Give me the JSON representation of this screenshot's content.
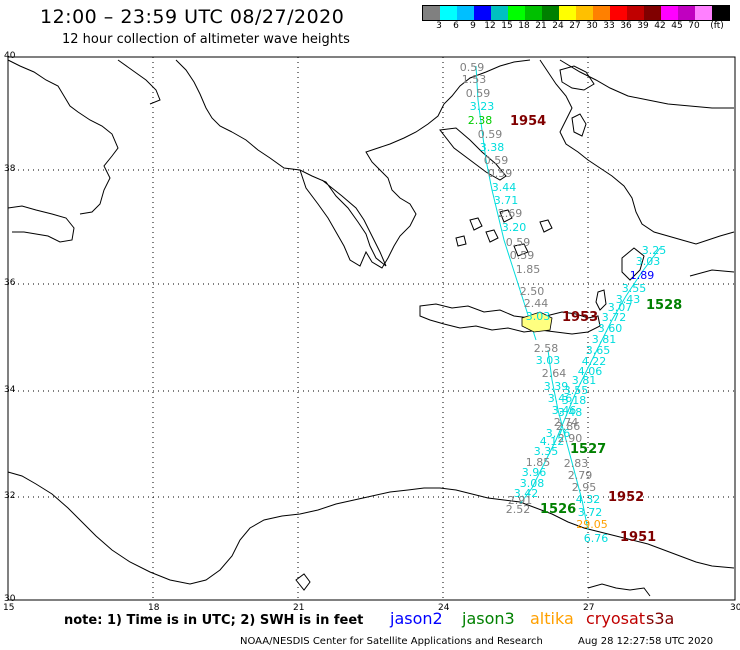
{
  "header": {
    "title": "12:00 – 23:59 UTC 08/27/2020",
    "subtitle": "12 hour collection of altimeter wave heights"
  },
  "scale": {
    "colors": [
      "#808080",
      "#00ffff",
      "#00bfff",
      "#0000ff",
      "#00c0c0",
      "#00ff00",
      "#00c000",
      "#008000",
      "#ffff00",
      "#ffc000",
      "#ff8000",
      "#ff0000",
      "#c00000",
      "#800000",
      "#ff00ff",
      "#c000c0",
      "#ff80ff",
      "#000000"
    ],
    "labels": [
      "3",
      "6",
      "9",
      "12",
      "15",
      "18",
      "21",
      "24",
      "27",
      "30",
      "33",
      "36",
      "39",
      "42",
      "45",
      "70",
      "(ft)"
    ]
  },
  "axes": {
    "lon_labels": [
      "15",
      "18",
      "21",
      "24",
      "27",
      "30"
    ],
    "lat_labels": [
      "40",
      "38",
      "36",
      "34",
      "32",
      "30"
    ]
  },
  "tracks": [
    {
      "name": "1954",
      "color": "#800000"
    },
    {
      "name": "1953",
      "color": "#800000"
    },
    {
      "name": "1528",
      "color": "#008000"
    },
    {
      "name": "1527",
      "color": "#008000"
    },
    {
      "name": "1526",
      "color": "#008000"
    },
    {
      "name": "1952",
      "color": "#800000"
    },
    {
      "name": "1951",
      "color": "#800000"
    }
  ],
  "wave_heights": [
    {
      "v": "0.59",
      "c": "#808080"
    },
    {
      "v": "1.53",
      "c": "#808080"
    },
    {
      "v": "0.59",
      "c": "#808080"
    },
    {
      "v": "3.23",
      "c": "#00dddd"
    },
    {
      "v": "2.38",
      "c": "#00cc00"
    },
    {
      "v": "0.59",
      "c": "#808080"
    },
    {
      "v": "3.38",
      "c": "#00dddd"
    },
    {
      "v": "0.59",
      "c": "#808080"
    },
    {
      "v": "0.59",
      "c": "#808080"
    },
    {
      "v": "3.44",
      "c": "#00dddd"
    },
    {
      "v": "3.71",
      "c": "#00dddd"
    },
    {
      "v": "2.69",
      "c": "#808080"
    },
    {
      "v": "3.20",
      "c": "#00dddd"
    },
    {
      "v": "0.59",
      "c": "#808080"
    },
    {
      "v": "0.59",
      "c": "#808080"
    },
    {
      "v": "1.85",
      "c": "#808080"
    },
    {
      "v": "2.50",
      "c": "#808080"
    },
    {
      "v": "2.44",
      "c": "#808080"
    },
    {
      "v": "3.03",
      "c": "#00dddd"
    },
    {
      "v": "2.58",
      "c": "#808080"
    },
    {
      "v": "3.03",
      "c": "#00dddd"
    },
    {
      "v": "2.64",
      "c": "#808080"
    },
    {
      "v": "3.39",
      "c": "#00dddd"
    },
    {
      "v": "3.46",
      "c": "#00dddd"
    },
    {
      "v": "3.46",
      "c": "#00dddd"
    },
    {
      "v": "2.74",
      "c": "#808080"
    },
    {
      "v": "3.76",
      "c": "#00dddd"
    },
    {
      "v": "4.12",
      "c": "#00dddd"
    },
    {
      "v": "3.35",
      "c": "#00dddd"
    },
    {
      "v": "1.85",
      "c": "#808080"
    },
    {
      "v": "3.96",
      "c": "#00dddd"
    },
    {
      "v": "3.08",
      "c": "#00dddd"
    },
    {
      "v": "3.42",
      "c": "#00dddd"
    },
    {
      "v": "2.91",
      "c": "#808080"
    },
    {
      "v": "2.52",
      "c": "#808080"
    },
    {
      "v": "3.25",
      "c": "#00dddd"
    },
    {
      "v": "3.03",
      "c": "#00dddd"
    },
    {
      "v": "1.89",
      "c": "#0000ff"
    },
    {
      "v": "3.55",
      "c": "#00dddd"
    },
    {
      "v": "3.43",
      "c": "#00dddd"
    },
    {
      "v": "3.07",
      "c": "#00dddd"
    },
    {
      "v": "3.72",
      "c": "#00dddd"
    },
    {
      "v": "3.60",
      "c": "#00dddd"
    },
    {
      "v": "3.81",
      "c": "#00dddd"
    },
    {
      "v": "3.65",
      "c": "#00dddd"
    },
    {
      "v": "4.22",
      "c": "#00dddd"
    },
    {
      "v": "4.06",
      "c": "#00dddd"
    },
    {
      "v": "3.81",
      "c": "#00dddd"
    },
    {
      "v": "3.55",
      "c": "#00dddd"
    },
    {
      "v": "3.18",
      "c": "#00dddd"
    },
    {
      "v": "3.48",
      "c": "#00dddd"
    },
    {
      "v": "2.86",
      "c": "#808080"
    },
    {
      "v": "2.90",
      "c": "#808080"
    },
    {
      "v": "2.83",
      "c": "#808080"
    },
    {
      "v": "2.79",
      "c": "#808080"
    },
    {
      "v": "2.95",
      "c": "#808080"
    },
    {
      "v": "4.32",
      "c": "#00dddd"
    },
    {
      "v": "3.72",
      "c": "#00dddd"
    },
    {
      "v": "29.05",
      "c": "#ffa000"
    },
    {
      "v": "6.76",
      "c": "#00dddd"
    }
  ],
  "footer": {
    "note": "note:  1) Time is in UTC;  2) SWH is in feet",
    "legend": [
      {
        "name": "jason2",
        "color": "#0000ff"
      },
      {
        "name": "jason3",
        "color": "#008000"
      },
      {
        "name": "altika",
        "color": "#ffa000"
      },
      {
        "name": "cryosat",
        "color": "#c00000"
      },
      {
        "name": "s3a",
        "color": "#800000"
      }
    ],
    "credit": "NOAA/NESDIS Center for Satellite Applications and Research",
    "timestamp": "Aug 28 12:27:58 UTC 2020"
  }
}
